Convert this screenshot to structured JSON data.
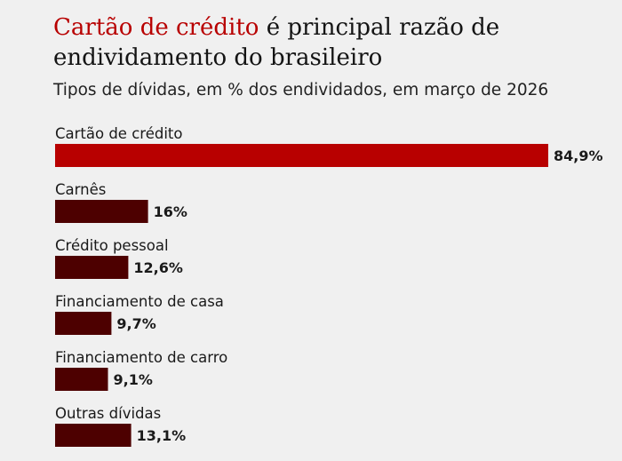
{
  "header": {
    "title_highlight": "Cartão de crédito",
    "title_rest": " é principal razão de endividamento do brasileiro",
    "subtitle": "Tipos de dívidas, em % dos endividados, em março de 2026"
  },
  "chart_data": {
    "type": "bar",
    "orientation": "horizontal",
    "categories": [
      "Cartão de crédito",
      "Carnês",
      "Crédito pessoal",
      "Financiamento de casa",
      "Financiamento de carro",
      "Outras dívidas"
    ],
    "values": [
      84.9,
      16,
      12.6,
      9.7,
      9.1,
      13.1
    ],
    "value_labels": [
      "84,9%",
      "16%",
      "12,6%",
      "9,7%",
      "9,1%",
      "13,1%"
    ],
    "unit": "%",
    "xlim": [
      0,
      84.9
    ],
    "grid": false,
    "legend": "none",
    "colors": {
      "highlight": "#b80000",
      "default": "#4d0000"
    },
    "highlight_index": 0
  }
}
